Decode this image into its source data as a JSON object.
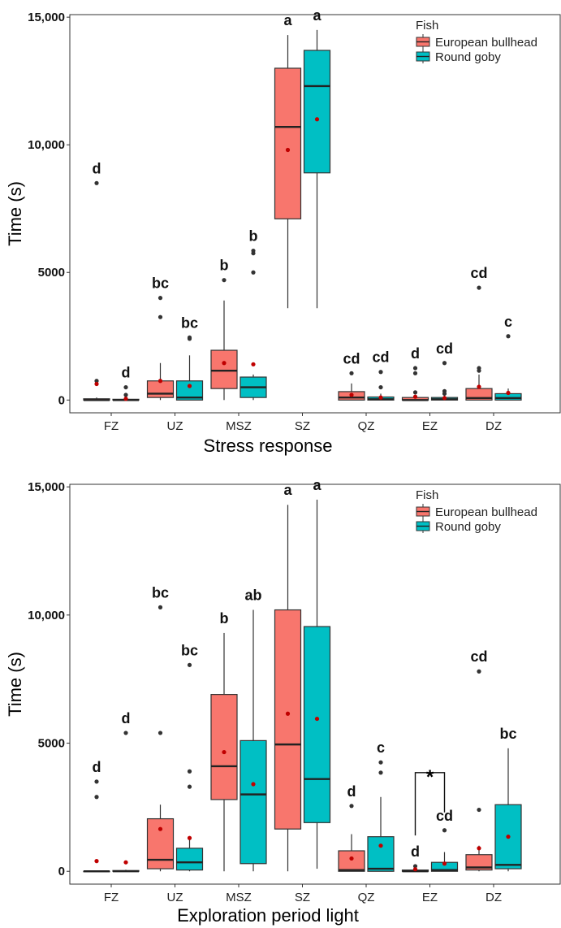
{
  "chart_data": [
    {
      "type": "box",
      "xlabel": "Stress response",
      "ylabel": "Time (s)",
      "ylim": [
        -500,
        15100
      ],
      "y_ticks": [
        {
          "value": 0,
          "label": "0"
        },
        {
          "value": 5000,
          "label": "5000"
        },
        {
          "value": 10000,
          "label": "10,000"
        },
        {
          "value": 15000,
          "label": "15,000"
        }
      ],
      "categories": [
        "FZ",
        "UZ",
        "MSZ",
        "SZ",
        "QZ",
        "EZ",
        "DZ"
      ],
      "legend": {
        "title": "Fish",
        "placement": "top-right",
        "entries": [
          {
            "name": "European bullhead",
            "color": "#F8766D"
          },
          {
            "name": "Round goby",
            "color": "#00BFC4"
          }
        ]
      },
      "series": [
        {
          "name": "European bullhead",
          "color": "#F8766D",
          "boxes": [
            {
              "category": "FZ",
              "min": 0,
              "q1": 0,
              "median": 0,
              "q3": 50,
              "max": 100,
              "mean": 630,
              "outliers": [
                750,
                8500
              ],
              "letter": "d"
            },
            {
              "category": "UZ",
              "min": 0,
              "q1": 100,
              "median": 250,
              "q3": 750,
              "max": 1450,
              "mean": 750,
              "outliers": [
                3250,
                4000
              ],
              "letter": "bc"
            },
            {
              "category": "MSZ",
              "min": 0,
              "q1": 450,
              "median": 1150,
              "q3": 1950,
              "max": 3900,
              "mean": 1450,
              "outliers": [
                4700
              ],
              "letter": "b"
            },
            {
              "category": "SZ",
              "min": 3600,
              "q1": 7100,
              "median": 10700,
              "q3": 13000,
              "max": 14300,
              "mean": 9800,
              "outliers": [],
              "letter": "a"
            },
            {
              "category": "QZ",
              "min": 0,
              "q1": 0,
              "median": 100,
              "q3": 330,
              "max": 650,
              "mean": 200,
              "outliers": [
                1050
              ],
              "letter": "cd"
            },
            {
              "category": "EZ",
              "min": 0,
              "q1": 0,
              "median": 0,
              "q3": 100,
              "max": 200,
              "mean": 130,
              "outliers": [
                300,
                1050,
                1250
              ],
              "letter": "d"
            },
            {
              "category": "DZ",
              "min": 0,
              "q1": 0,
              "median": 80,
              "q3": 450,
              "max": 1000,
              "mean": 520,
              "outliers": [
                1150,
                1250,
                4400
              ],
              "letter": "cd"
            }
          ]
        },
        {
          "name": "Round goby",
          "color": "#00BFC4",
          "boxes": [
            {
              "category": "FZ",
              "min": 0,
              "q1": 0,
              "median": 0,
              "q3": 30,
              "max": 60,
              "mean": 50,
              "outliers": [
                200,
                500
              ],
              "letter": "d"
            },
            {
              "category": "UZ",
              "min": 0,
              "q1": 0,
              "median": 100,
              "q3": 750,
              "max": 1750,
              "mean": 550,
              "outliers": [
                2400,
                2450
              ],
              "letter": "bc"
            },
            {
              "category": "MSZ",
              "min": 0,
              "q1": 100,
              "median": 500,
              "q3": 900,
              "max": 1000,
              "mean": 1400,
              "outliers": [
                5000,
                5750,
                5850
              ],
              "letter": "b"
            },
            {
              "category": "SZ",
              "min": 3600,
              "q1": 8900,
              "median": 12300,
              "q3": 13700,
              "max": 14500,
              "mean": 11000,
              "outliers": [],
              "letter": "a"
            },
            {
              "category": "QZ",
              "min": 0,
              "q1": 0,
              "median": 30,
              "q3": 120,
              "max": 250,
              "mean": 100,
              "outliers": [
                500,
                1100
              ],
              "letter": "cd"
            },
            {
              "category": "EZ",
              "min": 0,
              "q1": 0,
              "median": 30,
              "q3": 100,
              "max": 200,
              "mean": 80,
              "outliers": [
                250,
                350,
                1450
              ],
              "letter": "cd"
            },
            {
              "category": "DZ",
              "min": 0,
              "q1": 0,
              "median": 80,
              "q3": 250,
              "max": 450,
              "mean": 280,
              "outliers": [
                2500
              ],
              "letter": "c"
            }
          ]
        }
      ]
    },
    {
      "type": "box",
      "xlabel": "Exploration period light",
      "ylabel": "Time (s)",
      "ylim": [
        -500,
        15100
      ],
      "y_ticks": [
        {
          "value": 0,
          "label": "0"
        },
        {
          "value": 5000,
          "label": "5000"
        },
        {
          "value": 10000,
          "label": "10,000"
        },
        {
          "value": 15000,
          "label": "15,000"
        }
      ],
      "categories": [
        "FZ",
        "UZ",
        "MSZ",
        "SZ",
        "QZ",
        "EZ",
        "DZ"
      ],
      "legend": {
        "title": "Fish",
        "placement": "top-right",
        "entries": [
          {
            "name": "European bullhead",
            "color": "#F8766D"
          },
          {
            "name": "Round goby",
            "color": "#00BFC4"
          }
        ]
      },
      "significance": {
        "category": "EZ",
        "label": "*"
      },
      "series": [
        {
          "name": "European bullhead",
          "color": "#F8766D",
          "boxes": [
            {
              "category": "FZ",
              "min": 0,
              "q1": 0,
              "median": 0,
              "q3": 0,
              "max": 0,
              "mean": 400,
              "outliers": [
                2900,
                3500
              ],
              "letter": "d"
            },
            {
              "category": "UZ",
              "min": 0,
              "q1": 100,
              "median": 450,
              "q3": 2050,
              "max": 2600,
              "mean": 1650,
              "outliers": [
                5400,
                10300
              ],
              "letter": "bc"
            },
            {
              "category": "MSZ",
              "min": 0,
              "q1": 2800,
              "median": 4100,
              "q3": 6900,
              "max": 9300,
              "mean": 4650,
              "outliers": [],
              "letter": "b"
            },
            {
              "category": "SZ",
              "min": 0,
              "q1": 1650,
              "median": 4950,
              "q3": 10200,
              "max": 14300,
              "mean": 6150,
              "outliers": [],
              "letter": "a"
            },
            {
              "category": "QZ",
              "min": 0,
              "q1": 0,
              "median": 50,
              "q3": 800,
              "max": 1450,
              "mean": 500,
              "outliers": [
                2550
              ],
              "letter": "d"
            },
            {
              "category": "EZ",
              "min": 0,
              "q1": 0,
              "median": 0,
              "q3": 50,
              "max": 100,
              "mean": 80,
              "outliers": [
                200
              ],
              "letter": "d"
            },
            {
              "category": "DZ",
              "min": 0,
              "q1": 50,
              "median": 150,
              "q3": 650,
              "max": 1000,
              "mean": 900,
              "outliers": [
                2400,
                7800
              ],
              "letter": "cd"
            }
          ]
        },
        {
          "name": "Round goby",
          "color": "#00BFC4",
          "boxes": [
            {
              "category": "FZ",
              "min": 0,
              "q1": 0,
              "median": 0,
              "q3": 30,
              "max": 60,
              "mean": 350,
              "outliers": [
                5400
              ],
              "letter": "d"
            },
            {
              "category": "UZ",
              "min": 0,
              "q1": 50,
              "median": 350,
              "q3": 900,
              "max": 1250,
              "mean": 1300,
              "outliers": [
                3300,
                3900,
                8050
              ],
              "letter": "bc"
            },
            {
              "category": "MSZ",
              "min": 0,
              "q1": 300,
              "median": 3000,
              "q3": 5100,
              "max": 10200,
              "mean": 3400,
              "outliers": [],
              "letter": "ab"
            },
            {
              "category": "SZ",
              "min": 100,
              "q1": 1900,
              "median": 3600,
              "q3": 9550,
              "max": 14500,
              "mean": 5950,
              "outliers": [],
              "letter": "a"
            },
            {
              "category": "QZ",
              "min": 0,
              "q1": 0,
              "median": 100,
              "q3": 1350,
              "max": 2900,
              "mean": 1000,
              "outliers": [
                3850,
                4250
              ],
              "letter": "c"
            },
            {
              "category": "EZ",
              "min": 0,
              "q1": 0,
              "median": 50,
              "q3": 350,
              "max": 750,
              "mean": 300,
              "outliers": [
                1600
              ],
              "letter": "cd"
            },
            {
              "category": "DZ",
              "min": 0,
              "q1": 100,
              "median": 250,
              "q3": 2600,
              "max": 4800,
              "mean": 1350,
              "outliers": [],
              "letter": "bc"
            }
          ]
        }
      ]
    }
  ]
}
